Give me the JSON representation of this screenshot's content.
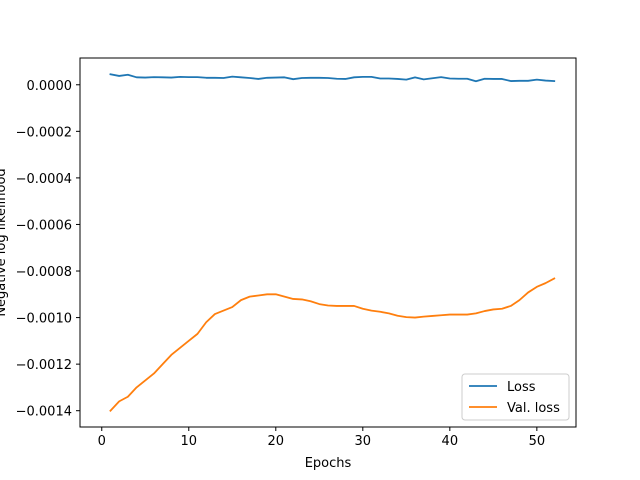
{
  "chart_data": {
    "type": "line",
    "title": "",
    "xlabel": "Epochs",
    "ylabel": "Negative log likelihood",
    "xlim": [
      -2.5,
      54.5
    ],
    "ylim": [
      -0.00147,
      0.000115
    ],
    "xticks": [
      0,
      10,
      20,
      30,
      40,
      50
    ],
    "xtick_labels": [
      "0",
      "10",
      "20",
      "30",
      "40",
      "50"
    ],
    "yticks": [
      0.0,
      -0.0002,
      -0.0004,
      -0.0006,
      -0.0008,
      -0.001,
      -0.0012,
      -0.0014
    ],
    "ytick_labels": [
      "0.0000",
      "−0.0002",
      "−0.0004",
      "−0.0006",
      "−0.0008",
      "−0.0010",
      "−0.0012",
      "−0.0014"
    ],
    "grid": false,
    "legend_position": "lower-right",
    "x": [
      1,
      2,
      3,
      4,
      5,
      6,
      7,
      8,
      9,
      10,
      11,
      12,
      13,
      14,
      15,
      16,
      17,
      18,
      19,
      20,
      21,
      22,
      23,
      24,
      25,
      26,
      27,
      28,
      29,
      30,
      31,
      32,
      33,
      34,
      35,
      36,
      37,
      38,
      39,
      40,
      41,
      42,
      43,
      44,
      45,
      46,
      47,
      48,
      49,
      50,
      51,
      52
    ],
    "series": [
      {
        "name": "Loss",
        "color": "#1f77b4",
        "values": [
          4.5e-05,
          3.8e-05,
          4.3e-05,
          3.2e-05,
          3.1e-05,
          3.3e-05,
          3.2e-05,
          3.1e-05,
          3.4e-05,
          3.3e-05,
          3.3e-05,
          3e-05,
          3e-05,
          2.9e-05,
          3.5e-05,
          3.2e-05,
          2.9e-05,
          2.5e-05,
          3e-05,
          3.1e-05,
          3.2e-05,
          2.4e-05,
          2.9e-05,
          3e-05,
          3e-05,
          2.9e-05,
          2.6e-05,
          2.5e-05,
          3.2e-05,
          3.4e-05,
          3.4e-05,
          2.7e-05,
          2.7e-05,
          2.5e-05,
          2.2e-05,
          3.2e-05,
          2.3e-05,
          2.8e-05,
          3.3e-05,
          2.7e-05,
          2.6e-05,
          2.6e-05,
          1.5e-05,
          2.6e-05,
          2.5e-05,
          2.5e-05,
          1.6e-05,
          1.7e-05,
          1.7e-05,
          2.2e-05,
          1.8e-05,
          1.6e-05
        ]
      },
      {
        "name": "Val. loss",
        "color": "#ff7f0e",
        "values": [
          -0.0014,
          -0.00136,
          -0.00134,
          -0.0013,
          -0.00127,
          -0.00124,
          -0.0012,
          -0.00116,
          -0.00113,
          -0.0011,
          -0.00107,
          -0.00102,
          -0.000985,
          -0.00097,
          -0.000955,
          -0.000925,
          -0.00091,
          -0.000905,
          -0.0009,
          -0.0009,
          -0.00091,
          -0.00092,
          -0.000922,
          -0.00093,
          -0.000942,
          -0.000948,
          -0.00095,
          -0.00095,
          -0.00095,
          -0.000962,
          -0.00097,
          -0.000975,
          -0.000982,
          -0.000992,
          -0.000998,
          -0.001,
          -0.000996,
          -0.000993,
          -0.00099,
          -0.000987,
          -0.000987,
          -0.000987,
          -0.000982,
          -0.000972,
          -0.000965,
          -0.000962,
          -0.00095,
          -0.000925,
          -0.000892,
          -0.000868,
          -0.000852,
          -0.000832
        ]
      }
    ]
  }
}
